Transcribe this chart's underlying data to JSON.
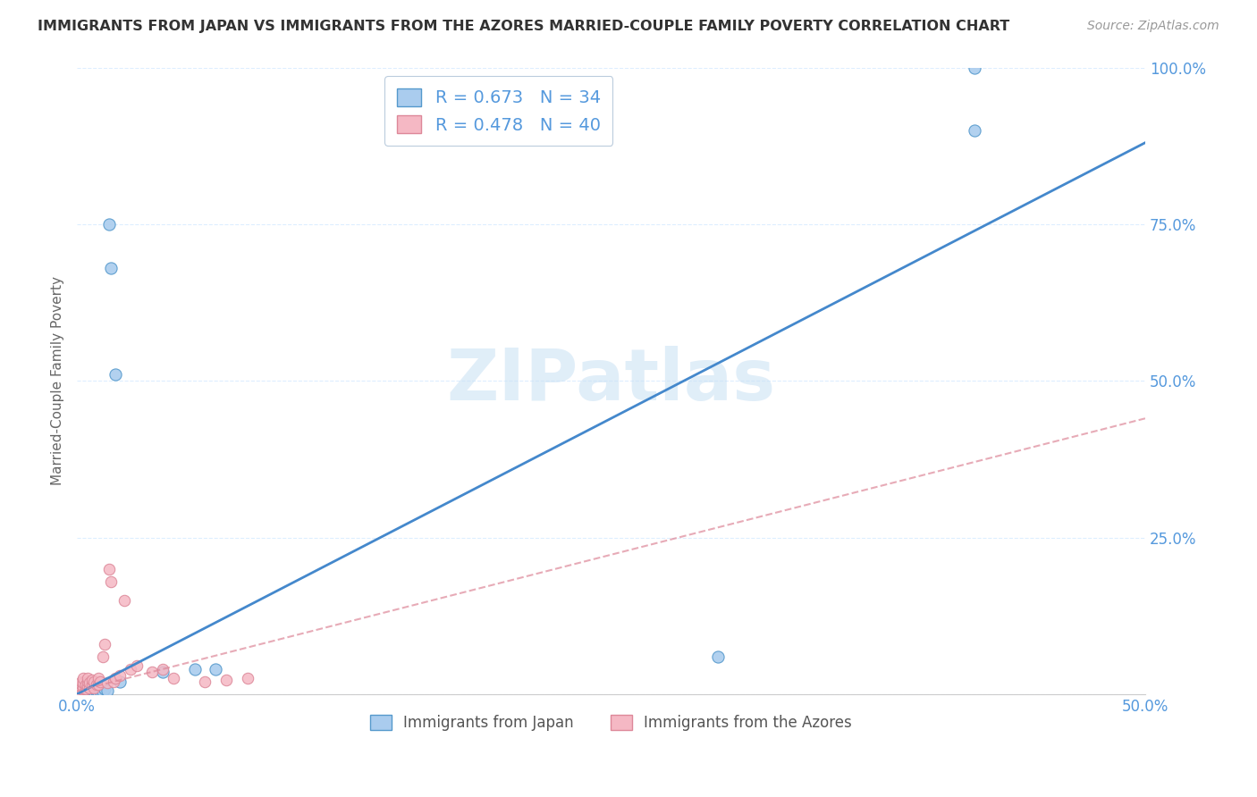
{
  "title": "IMMIGRANTS FROM JAPAN VS IMMIGRANTS FROM THE AZORES MARRIED-COUPLE FAMILY POVERTY CORRELATION CHART",
  "source": "Source: ZipAtlas.com",
  "ylabel": "Married-Couple Family Poverty",
  "xlim": [
    0.0,
    0.5
  ],
  "ylim": [
    0.0,
    1.0
  ],
  "watermark": "ZIPatlas",
  "legend_label1": "Immigrants from Japan",
  "legend_label2": "Immigrants from the Azores",
  "R1": 0.673,
  "N1": 34,
  "R2": 0.478,
  "N2": 40,
  "blue_fill": "#AACCEE",
  "blue_edge": "#5599CC",
  "pink_fill": "#F5B8C4",
  "pink_edge": "#DD8899",
  "blue_line": "#4488CC",
  "pink_line": "#DD8899",
  "axis_color": "#5599DD",
  "grid_color": "#DDEEFF",
  "background_color": "#FFFFFF",
  "title_color": "#333333",
  "source_color": "#999999",
  "ylabel_color": "#666666",
  "japan_x": [
    0.001,
    0.002,
    0.002,
    0.003,
    0.003,
    0.003,
    0.004,
    0.004,
    0.005,
    0.005,
    0.006,
    0.006,
    0.007,
    0.007,
    0.008,
    0.008,
    0.009,
    0.009,
    0.01,
    0.01,
    0.011,
    0.012,
    0.013,
    0.014,
    0.015,
    0.016,
    0.018,
    0.02,
    0.04,
    0.055,
    0.065,
    0.3,
    0.42,
    0.42
  ],
  "japan_y": [
    0.002,
    0.003,
    0.005,
    0.002,
    0.004,
    0.006,
    0.003,
    0.008,
    0.004,
    0.007,
    0.003,
    0.006,
    0.004,
    0.008,
    0.003,
    0.006,
    0.004,
    0.007,
    0.003,
    0.01,
    0.005,
    0.004,
    0.008,
    0.006,
    0.75,
    0.68,
    0.51,
    0.02,
    0.035,
    0.04,
    0.04,
    0.06,
    0.9,
    1.0
  ],
  "azores_x": [
    0.001,
    0.001,
    0.002,
    0.002,
    0.002,
    0.003,
    0.003,
    0.003,
    0.004,
    0.004,
    0.005,
    0.005,
    0.005,
    0.006,
    0.006,
    0.007,
    0.007,
    0.008,
    0.008,
    0.009,
    0.01,
    0.01,
    0.011,
    0.012,
    0.013,
    0.014,
    0.015,
    0.016,
    0.017,
    0.018,
    0.02,
    0.022,
    0.025,
    0.028,
    0.035,
    0.04,
    0.045,
    0.06,
    0.07,
    0.08
  ],
  "azores_y": [
    0.005,
    0.01,
    0.008,
    0.015,
    0.02,
    0.01,
    0.018,
    0.025,
    0.008,
    0.015,
    0.012,
    0.02,
    0.025,
    0.01,
    0.018,
    0.015,
    0.022,
    0.01,
    0.02,
    0.015,
    0.015,
    0.025,
    0.02,
    0.06,
    0.08,
    0.018,
    0.2,
    0.18,
    0.02,
    0.025,
    0.03,
    0.15,
    0.04,
    0.045,
    0.035,
    0.04,
    0.025,
    0.02,
    0.022,
    0.025
  ],
  "blue_line_x": [
    0.0,
    0.5
  ],
  "blue_line_y": [
    0.0,
    0.88
  ],
  "pink_line_x": [
    0.0,
    0.5
  ],
  "pink_line_y": [
    0.005,
    0.44
  ]
}
